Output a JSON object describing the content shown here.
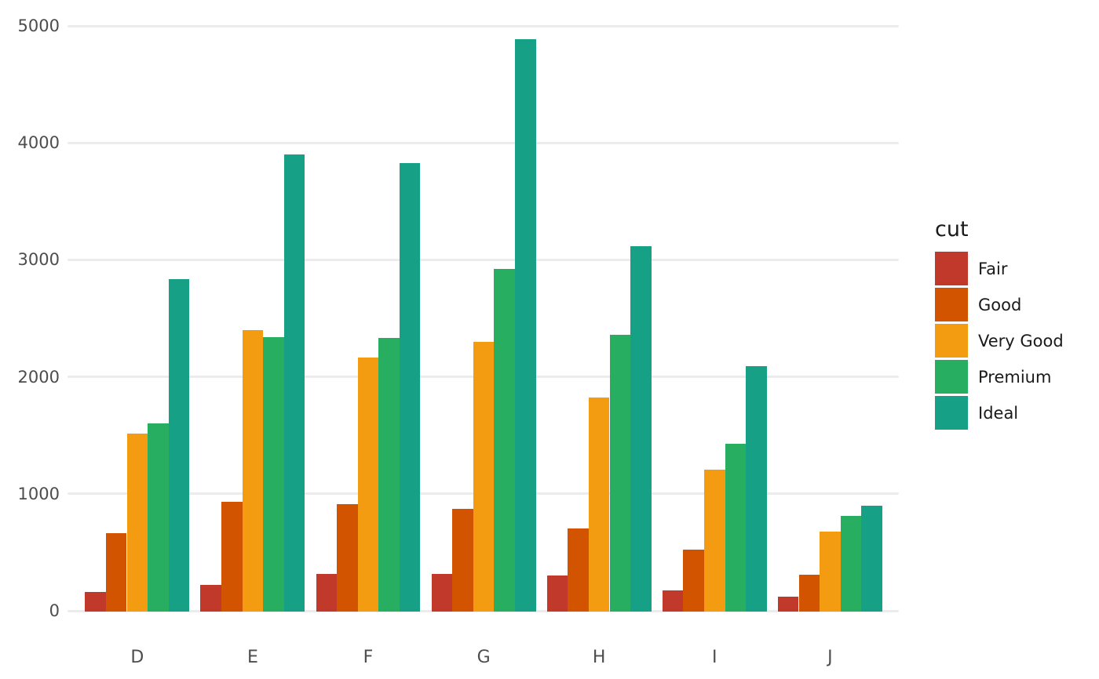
{
  "chart_data": {
    "type": "bar",
    "mode": "grouped",
    "title": "",
    "xlabel": "",
    "ylabel": "",
    "legend_title": "cut",
    "legend_position": "right",
    "grid": true,
    "categories": [
      "D",
      "E",
      "F",
      "G",
      "H",
      "I",
      "J"
    ],
    "series": [
      {
        "name": "Fair",
        "color": "#c0392b",
        "values": [
          163,
          224,
          312,
          314,
          303,
          175,
          119
        ]
      },
      {
        "name": "Good",
        "color": "#d35400",
        "values": [
          662,
          933,
          909,
          871,
          702,
          522,
          307
        ]
      },
      {
        "name": "Very Good",
        "color": "#f39c12",
        "values": [
          1513,
          2400,
          2164,
          2299,
          1824,
          1204,
          678
        ]
      },
      {
        "name": "Premium",
        "color": "#27ae60",
        "values": [
          1603,
          2337,
          2331,
          2924,
          2360,
          1428,
          808
        ]
      },
      {
        "name": "Ideal",
        "color": "#16a085",
        "values": [
          2834,
          3903,
          3826,
          4884,
          3115,
          2093,
          896
        ]
      }
    ],
    "y_ticks": [
      0,
      1000,
      2000,
      3000,
      4000,
      5000
    ],
    "ylim": [
      0,
      5000
    ],
    "background_color": "#ffffff",
    "gridline_color": "#ececec",
    "axis_text_color": "#4d4d4d",
    "legend_text_color": "#1a1a1a"
  }
}
